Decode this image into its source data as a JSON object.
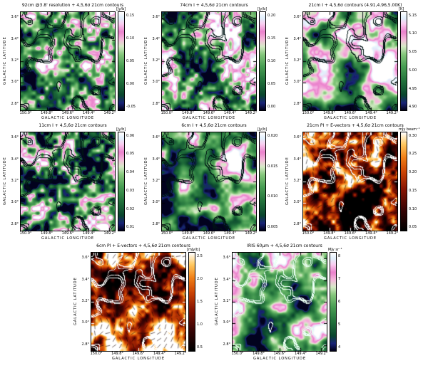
{
  "axes": {
    "x_label": "GALACTIC LONGITUDE",
    "y_label": "GALACTIC LATITUDE",
    "x_ticks": [
      "150.0°",
      "149.8°",
      "149.6°",
      "149.4°",
      "149.2°"
    ],
    "y_ticks": [
      "3.6°",
      "3.4°",
      "3.2°",
      "3.0°",
      "2.8°"
    ]
  },
  "chart_data": [
    {
      "type": "heatmap",
      "title": "92cm @3.8' resolution + 4,5,6σ 21cm contours",
      "xlabel": "GALACTIC LONGITUDE",
      "ylabel": "GALACTIC LATITUDE",
      "x_ticks": [
        "150.0°",
        "149.8°",
        "149.6°",
        "149.4°",
        "149.2°"
      ],
      "y_ticks": [
        "3.6°",
        "3.4°",
        "3.2°",
        "3.0°",
        "2.8°"
      ],
      "colorbar": {
        "unit": "[Jy/b]",
        "ticks": [
          "0.15",
          "0.10",
          "0.05",
          "0.00",
          "-0.05"
        ]
      },
      "overlays": [
        "21cm contours (4,5,6σ)"
      ]
    },
    {
      "type": "heatmap",
      "title": "74cm I + 4,5,6σ 21cm contours",
      "xlabel": "GALACTIC LONGITUDE",
      "ylabel": "GALACTIC LATITUDE",
      "x_ticks": [
        "150.0°",
        "149.8°",
        "149.6°",
        "149.4°",
        "149.2°"
      ],
      "y_ticks": [
        "3.6°",
        "3.4°",
        "3.2°",
        "3.0°",
        "2.8°"
      ],
      "colorbar": {
        "unit": "[Jy/b]",
        "ticks": [
          "0.20",
          "0.15",
          "0.10",
          "0.05",
          "0.00"
        ]
      },
      "overlays": [
        "21cm contours (4,5,6σ)"
      ]
    },
    {
      "type": "heatmap",
      "title": "21cm I + 4,5,6σ contours (4.91,4.96,5.00K)",
      "xlabel": "GALACTIC LONGITUDE",
      "ylabel": "GALACTIC LATITUDE",
      "x_ticks": [
        "150.0°",
        "149.8°",
        "149.6°",
        "149.4°",
        "149.2°"
      ],
      "y_ticks": [
        "3.6°",
        "3.4°",
        "3.2°",
        "3.0°",
        "2.8°"
      ],
      "colorbar": {
        "unit": "[K]",
        "ticks": [
          "5.15",
          "5.10",
          "5.05",
          "5.00",
          "4.95",
          "4.90"
        ]
      },
      "overlays": [
        "21cm contours (4,5,6σ)"
      ]
    },
    {
      "type": "heatmap",
      "title": "11cm I + 4,5,6σ 21cm contours",
      "xlabel": "GALACTIC LONGITUDE",
      "ylabel": "GALACTIC LATITUDE",
      "x_ticks": [
        "150.0°",
        "149.8°",
        "149.6°",
        "149.4°",
        "149.2°"
      ],
      "y_ticks": [
        "3.6°",
        "3.4°",
        "3.2°",
        "3.0°",
        "2.8°"
      ],
      "colorbar": {
        "unit": "[Jy/b]",
        "ticks": [
          "0.06",
          "0.05",
          "0.04",
          "0.03",
          "0.02",
          "0.01"
        ]
      },
      "overlays": [
        "21cm contours (4,5,6σ)"
      ]
    },
    {
      "type": "heatmap",
      "title": "6cm I + 4,5,6σ 21cm contours",
      "xlabel": "GALACTIC LONGITUDE",
      "ylabel": "GALACTIC LATITUDE",
      "x_ticks": [
        "150.0°",
        "149.8°",
        "149.6°",
        "149.4°",
        "149.2°"
      ],
      "y_ticks": [
        "3.6°",
        "3.4°",
        "3.2°",
        "3.0°",
        "2.8°"
      ],
      "colorbar": {
        "unit": "[Jy/b]",
        "ticks": [
          "0.020",
          "0.015",
          "0.010",
          "0.005"
        ]
      },
      "overlays": [
        "21cm contours (4,5,6σ)"
      ]
    },
    {
      "type": "heatmap",
      "title": "21cm PI + E-vectors + 4,5,6σ 21cm contours",
      "xlabel": "GALACTIC LONGITUDE",
      "ylabel": "GALACTIC LATITUDE",
      "x_ticks": [
        "150.0°",
        "149.8°",
        "149.6°",
        "149.4°",
        "149.2°"
      ],
      "y_ticks": [
        "3.6°",
        "3.4°",
        "3.2°",
        "3.0°",
        "2.8°"
      ],
      "colorbar": {
        "unit": "mJy beam⁻¹",
        "ticks": [
          "0.30",
          "0.25",
          "0.20",
          "0.15",
          "0.10",
          "0.05"
        ]
      },
      "overlays": [
        "21cm contours (4,5,6σ)",
        "E-vectors"
      ]
    },
    {
      "type": "heatmap",
      "title": "6cm PI + E-vectors + 4,5,6σ 21cm contours",
      "xlabel": "GALACTIC LONGITUDE",
      "ylabel": "GALACTIC LATITUDE",
      "x_ticks": [
        "150.0°",
        "149.8°",
        "149.6°",
        "149.4°",
        "149.2°"
      ],
      "y_ticks": [
        "3.6°",
        "3.4°",
        "3.2°",
        "3.0°",
        "2.8°"
      ],
      "colorbar": {
        "unit": "[mJy/b]",
        "ticks": [
          "2.5",
          "2.0",
          "1.5",
          "1.0",
          "0.5"
        ]
      },
      "overlays": [
        "21cm contours (4,5,6σ)",
        "E-vectors"
      ]
    },
    {
      "type": "heatmap",
      "title": "IRIS 60μm + 4,5,6σ 21cm contours",
      "xlabel": "GALACTIC LONGITUDE",
      "ylabel": "GALACTIC LATITUDE",
      "x_ticks": [
        "150.0°",
        "149.8°",
        "149.6°",
        "149.4°",
        "149.2°"
      ],
      "y_ticks": [
        "3.6°",
        "3.4°",
        "3.2°",
        "3.0°",
        "2.8°"
      ],
      "colorbar": {
        "unit": "MJy sr⁻¹",
        "ticks": [
          "8",
          "7",
          "6",
          "5",
          "4"
        ]
      },
      "overlays": [
        "21cm contours (4,5,6σ)"
      ]
    }
  ],
  "panels": [
    {
      "palette": "radio",
      "seed": 11,
      "rough": 1.0,
      "contrast": 1.05,
      "bias": 0.02,
      "tilt": [
        0.0,
        0.0
      ],
      "contour": "#001414",
      "vectors": false,
      "vecColor": "rgba(0,0,0,0.8)"
    },
    {
      "palette": "radio",
      "seed": 23,
      "rough": 0.95,
      "contrast": 1.0,
      "bias": 0.03,
      "tilt": [
        0.05,
        -0.05
      ],
      "contour": "#001414",
      "vectors": false,
      "vecColor": "rgba(0,0,0,0.8)"
    },
    {
      "palette": "radio",
      "seed": 37,
      "rough": 0.3,
      "contrast": 0.95,
      "bias": 0.05,
      "tilt": [
        0.16,
        -0.12
      ],
      "contour": "#001414",
      "vectors": false,
      "vecColor": "rgba(0,0,0,0.8)"
    },
    {
      "palette": "radio",
      "seed": 47,
      "rough": 1.25,
      "contrast": 1.1,
      "bias": 0.0,
      "tilt": [
        0.0,
        0.0
      ],
      "contour": "#001414",
      "vectors": false,
      "vecColor": "rgba(0,0,0,0.8)"
    },
    {
      "palette": "radio",
      "seed": 59,
      "rough": 0.3,
      "contrast": 1.0,
      "bias": 0.0,
      "tilt": [
        0.2,
        -0.2
      ],
      "contour": "#001414",
      "vectors": false,
      "vecColor": "rgba(0,0,0,0.8)"
    },
    {
      "palette": "heat",
      "seed": 67,
      "rough": 0.85,
      "contrast": 1.25,
      "bias": -0.05,
      "tilt": [
        0.0,
        0.0
      ],
      "contour": "#ffffff",
      "vectors": true,
      "vecColor": "rgba(0,0,0,0.8)"
    },
    {
      "palette": "heat",
      "seed": 79,
      "rough": 0.7,
      "contrast": 1.1,
      "bias": 0.12,
      "tilt": [
        -0.1,
        0.05
      ],
      "contour": "#ffffff",
      "vectors": true,
      "vecColor": "rgba(20,0,0,0.85)"
    },
    {
      "palette": "radio",
      "seed": 91,
      "rough": 0.35,
      "contrast": 0.85,
      "bias": 0.02,
      "tilt": [
        0.0,
        -0.05
      ],
      "contour": "#eafff4",
      "vectors": false,
      "vecColor": "rgba(0,0,0,0.8)"
    }
  ]
}
